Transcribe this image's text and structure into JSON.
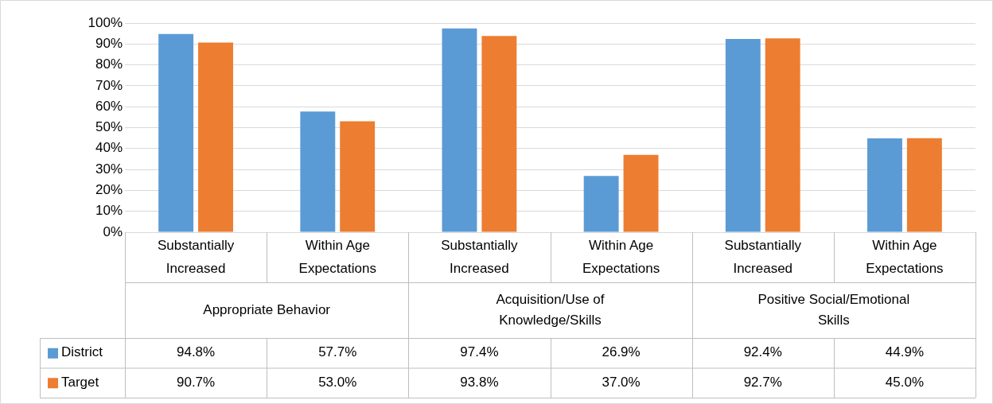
{
  "chart_data": {
    "type": "bar",
    "categories": [
      "Substantially Increased",
      "Within Age Expectations",
      "Substantially Increased",
      "Within Age Expectations",
      "Substantially Increased",
      "Within Age Expectations"
    ],
    "series": [
      {
        "name": "District",
        "color": "#5b9bd5",
        "values": [
          94.8,
          57.7,
          97.4,
          26.9,
          92.4,
          44.9
        ],
        "value_labels": [
          "94.8%",
          "57.7%",
          "97.4%",
          "26.9%",
          "92.4%",
          "44.9%"
        ]
      },
      {
        "name": "Target",
        "color": "#ed7d31",
        "values": [
          90.7,
          53.0,
          93.8,
          37.0,
          92.7,
          45.0
        ],
        "value_labels": [
          "90.7%",
          "53.0%",
          "93.8%",
          "37.0%",
          "92.7%",
          "45.0%"
        ]
      }
    ],
    "annotations": [
      "Appropriate Behavior",
      "Acquisition/Use of Knowledge/Skills",
      "Positive Social/Emotional Skills"
    ],
    "ylim": [
      0,
      100
    ],
    "yticks": [
      {
        "value": 0,
        "label": "0%"
      },
      {
        "value": 10,
        "label": "10%"
      },
      {
        "value": 20,
        "label": "20%"
      },
      {
        "value": 30,
        "label": "30%"
      },
      {
        "value": 40,
        "label": "40%"
      },
      {
        "value": 50,
        "label": "50%"
      },
      {
        "value": 60,
        "label": "60%"
      },
      {
        "value": 70,
        "label": "70%"
      },
      {
        "value": 80,
        "label": "80%"
      },
      {
        "value": 90,
        "label": "90%"
      },
      {
        "value": 100,
        "label": "100%"
      }
    ],
    "grid": "y",
    "legend": "bottom"
  }
}
